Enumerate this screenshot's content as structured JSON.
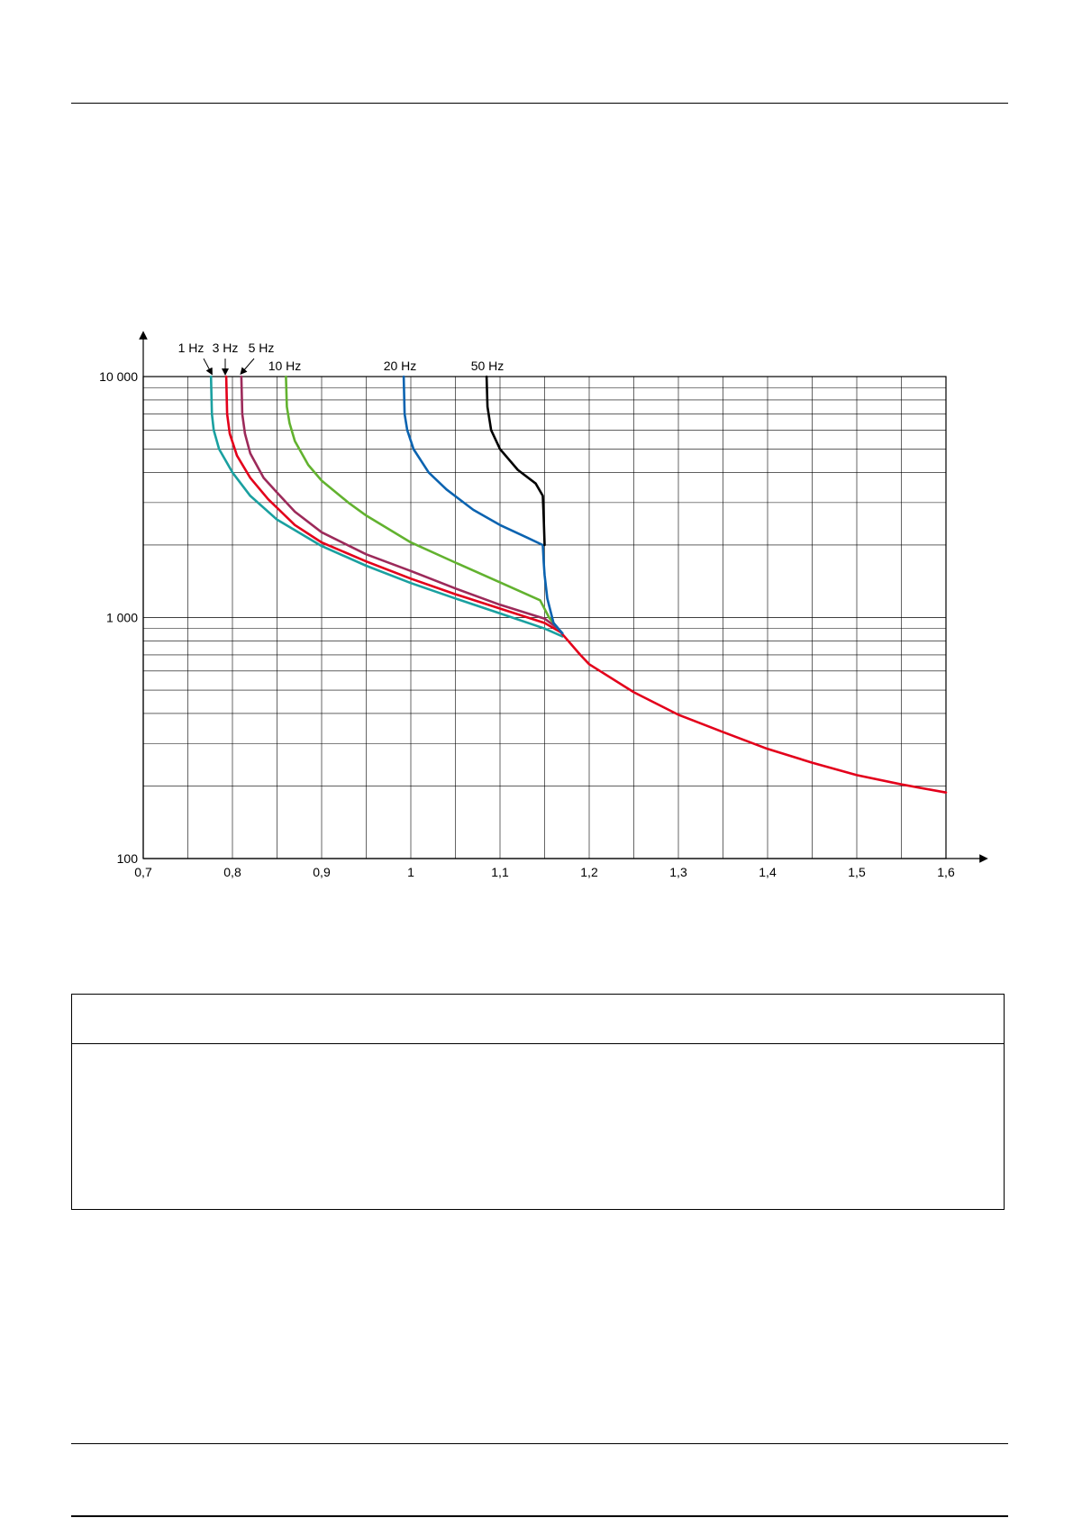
{
  "chart_data": {
    "type": "line",
    "title": "",
    "xlabel": "",
    "ylabel": "",
    "xlim": [
      0.7,
      1.6
    ],
    "ylim": [
      100,
      10000
    ],
    "y_scale": "log",
    "grid": true,
    "x_ticks": [
      "0,7",
      "0,8",
      "0,9",
      "1",
      "1,1",
      "1,2",
      "1,3",
      "1,4",
      "1,5",
      "1,6"
    ],
    "y_ticks": [
      "100",
      "1 000",
      "10 000"
    ],
    "series": [
      {
        "name": "1 Hz",
        "color": "#1aa0a0",
        "x": [
          0.776,
          0.777,
          0.779,
          0.785,
          0.8,
          0.82,
          0.85,
          0.9,
          0.95,
          1.0,
          1.05,
          1.1,
          1.15,
          1.17
        ],
        "y": [
          10000,
          7000,
          6000,
          5000,
          4000,
          3200,
          2550,
          1980,
          1640,
          1390,
          1200,
          1040,
          900,
          835
        ]
      },
      {
        "name": "3 Hz",
        "color": "#e3001b",
        "x": [
          0.793,
          0.794,
          0.797,
          0.805,
          0.82,
          0.84,
          0.87,
          0.9,
          0.95,
          1.0,
          1.05,
          1.1,
          1.15,
          1.168,
          1.19,
          1.2,
          1.25,
          1.3,
          1.35,
          1.4,
          1.45,
          1.5,
          1.55,
          1.6
        ],
        "y": [
          10000,
          7000,
          5800,
          4700,
          3800,
          3100,
          2420,
          2050,
          1710,
          1450,
          1250,
          1090,
          950,
          870,
          700,
          640,
          490,
          395,
          335,
          285,
          250,
          222,
          203,
          188
        ]
      },
      {
        "name": "5 Hz",
        "color": "#9c2a5a",
        "x": [
          0.81,
          0.811,
          0.814,
          0.82,
          0.835,
          0.85,
          0.87,
          0.9,
          0.95,
          1.0,
          1.05,
          1.1,
          1.15,
          1.165
        ],
        "y": [
          10000,
          7000,
          5800,
          4800,
          3800,
          3300,
          2750,
          2260,
          1830,
          1560,
          1320,
          1130,
          990,
          900
        ]
      },
      {
        "name": "10 Hz",
        "color": "#62b22f",
        "x": [
          0.86,
          0.861,
          0.864,
          0.87,
          0.885,
          0.9,
          0.93,
          0.95,
          1.0,
          1.05,
          1.1,
          1.145,
          1.155,
          1.165
        ],
        "y": [
          10000,
          7500,
          6400,
          5400,
          4300,
          3700,
          3000,
          2650,
          2050,
          1690,
          1400,
          1180,
          1000,
          900
        ]
      },
      {
        "name": "20 Hz",
        "color": "#0b63b0",
        "x": [
          0.992,
          0.993,
          0.996,
          1.003,
          1.02,
          1.04,
          1.07,
          1.1,
          1.13,
          1.148,
          1.149,
          1.15,
          1.153,
          1.16,
          1.17
        ],
        "y": [
          10000,
          7000,
          6000,
          5000,
          4000,
          3400,
          2800,
          2420,
          2150,
          2000,
          1700,
          1500,
          1200,
          950,
          860
        ]
      },
      {
        "name": "50 Hz",
        "color": "#000000",
        "x": [
          1.085,
          1.086,
          1.09,
          1.1,
          1.12,
          1.14,
          1.148,
          1.149,
          1.15
        ],
        "y": [
          10000,
          7500,
          6000,
          5000,
          4100,
          3600,
          3200,
          2600,
          2000
        ]
      }
    ]
  }
}
